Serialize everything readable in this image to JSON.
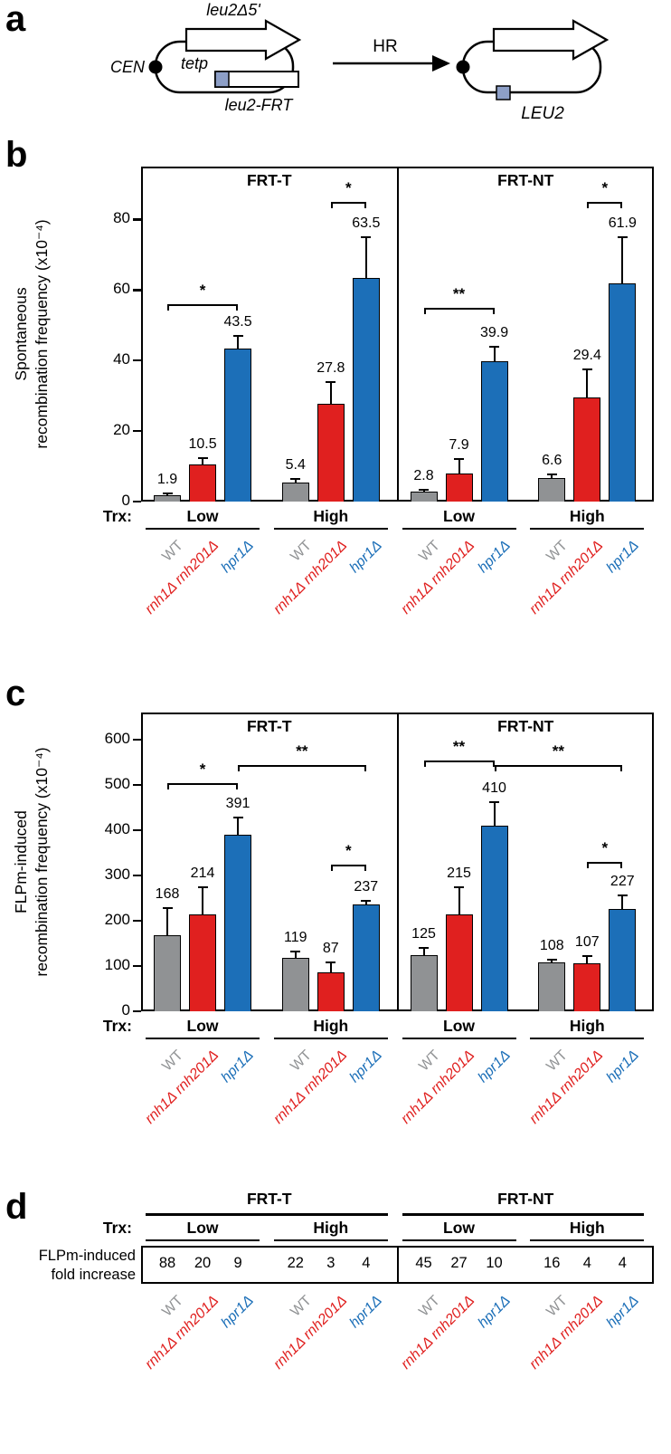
{
  "panels": {
    "a": "a",
    "b": "b",
    "c": "c",
    "d": "d"
  },
  "colors": {
    "wt_gray": "#909294",
    "rnh_red": "#e0201f",
    "hpr1_blue": "#1c6fb8",
    "frt_square": "#8d9fc7",
    "axis_black": "#000000"
  },
  "genotypes": [
    {
      "label": "WT",
      "color": "#909294",
      "italic": false
    },
    {
      "label": "rnh1Δ rnh201Δ",
      "color": "#e0201f",
      "italic": true
    },
    {
      "label": "hpr1Δ",
      "color": "#1c6fb8",
      "italic": true
    }
  ],
  "panel_a": {
    "cen": "CEN",
    "leu2d5": "leu2Δ5'",
    "tetp": "tetp",
    "leu2_frt": "leu2-FRT",
    "hr": "HR",
    "leu2": "LEU2"
  },
  "chart_data": [
    {
      "id": "b",
      "type": "bar",
      "ylabel_line1": "Spontaneous",
      "ylabel_line2": "recombination frequency (x10⁻⁴)",
      "ylim": [
        0,
        95
      ],
      "yticks": [
        0,
        20,
        40,
        60,
        80
      ],
      "trx_label": "Trx:",
      "series": [
        "WT",
        "rnh1Δ rnh201Δ",
        "hpr1Δ"
      ],
      "subpanels": [
        {
          "title": "FRT-T",
          "groups": [
            {
              "label": "Low",
              "values": [
                1.9,
                10.5,
                43.5
              ],
              "errors": [
                0.4,
                1.8,
                3.5
              ]
            },
            {
              "label": "High",
              "values": [
                5.4,
                27.8,
                63.5
              ],
              "errors": [
                0.9,
                6.0,
                11.5
              ]
            }
          ],
          "significance": [
            {
              "label": "*",
              "from": 0,
              "to": 2,
              "y": 56
            },
            {
              "label": "*",
              "from": 4,
              "to": 5,
              "y": 85
            }
          ]
        },
        {
          "title": "FRT-NT",
          "groups": [
            {
              "label": "Low",
              "values": [
                2.8,
                7.9,
                39.9
              ],
              "errors": [
                0.6,
                4.2,
                4.0
              ]
            },
            {
              "label": "High",
              "values": [
                6.6,
                29.4,
                61.9
              ],
              "errors": [
                1.0,
                8.0,
                13.0
              ]
            }
          ],
          "significance": [
            {
              "label": "**",
              "from": 0,
              "to": 2,
              "y": 55
            },
            {
              "label": "*",
              "from": 4,
              "to": 5,
              "y": 85
            }
          ]
        }
      ]
    },
    {
      "id": "c",
      "type": "bar",
      "ylabel_line1": "FLPm-induced",
      "ylabel_line2": "recombination frequency (x10⁻⁴)",
      "ylim": [
        0,
        660
      ],
      "yticks": [
        0,
        100,
        200,
        300,
        400,
        500,
        600
      ],
      "trx_label": "Trx:",
      "series": [
        "WT",
        "rnh1Δ rnh201Δ",
        "hpr1Δ"
      ],
      "subpanels": [
        {
          "title": "FRT-T",
          "groups": [
            {
              "label": "Low",
              "values": [
                168,
                214,
                391
              ],
              "errors": [
                60,
                60,
                38
              ]
            },
            {
              "label": "High",
              "values": [
                119,
                87,
                237
              ],
              "errors": [
                14,
                22,
                8
              ]
            }
          ],
          "significance": [
            {
              "label": "*",
              "from": 0,
              "to": 2,
              "y": 505
            },
            {
              "label": "**",
              "from": 2,
              "to": 5,
              "y": 545
            },
            {
              "label": "*",
              "from": 4,
              "to": 5,
              "y": 325
            }
          ]
        },
        {
          "title": "FRT-NT",
          "groups": [
            {
              "label": "Low",
              "values": [
                125,
                215,
                410
              ],
              "errors": [
                15,
                60,
                52
              ]
            },
            {
              "label": "High",
              "values": [
                108,
                107,
                227
              ],
              "errors": [
                6,
                16,
                30
              ]
            }
          ],
          "significance": [
            {
              "label": "**",
              "from": 0,
              "to": 2,
              "y": 555
            },
            {
              "label": "**",
              "from": 2,
              "to": 5,
              "y": 545
            },
            {
              "label": "*",
              "from": 4,
              "to": 5,
              "y": 330
            }
          ]
        }
      ]
    }
  ],
  "panel_d": {
    "row_label_line1": "FLPm-induced",
    "row_label_line2": "fold increase",
    "trx_label": "Trx:",
    "subpanels": [
      {
        "title": "FRT-T",
        "groups": [
          {
            "label": "Low",
            "values": [
              88,
              20,
              9
            ]
          },
          {
            "label": "High",
            "values": [
              22,
              3,
              4
            ]
          }
        ]
      },
      {
        "title": "FRT-NT",
        "groups": [
          {
            "label": "Low",
            "values": [
              45,
              27,
              10
            ]
          },
          {
            "label": "High",
            "values": [
              16,
              4,
              4
            ]
          }
        ]
      }
    ]
  }
}
